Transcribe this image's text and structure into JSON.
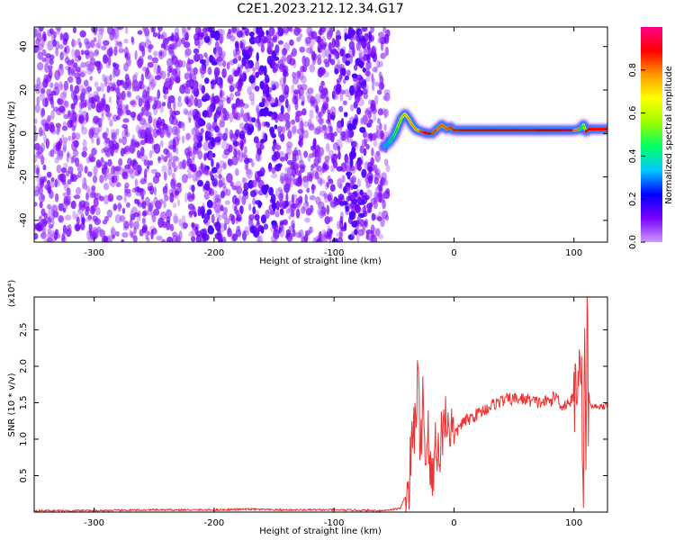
{
  "figure": {
    "title": "C2E1.2023.212.12.34.G17"
  },
  "chart_data": [
    {
      "type": "heatmap",
      "title": "C2E1.2023.212.12.34.G17",
      "xlabel": "Height of straight line (km)",
      "ylabel": "Frequency (Hz)",
      "xlim": [
        -350,
        128
      ],
      "ylim": [
        -50,
        49
      ],
      "x_ticks": [
        -300,
        -200,
        -100,
        0,
        100
      ],
      "y_ticks": [
        -40,
        -20,
        0,
        20,
        40
      ],
      "colorbar": {
        "label": "Normalized spectral amplitude",
        "range": [
          0.0,
          1.0
        ],
        "ticks": [
          0.0,
          0.2,
          0.4,
          0.6,
          0.8
        ],
        "colors": [
          "#cc99ff",
          "#7a00ff",
          "#0000ff",
          "#00c8ff",
          "#00ff66",
          "#99ff00",
          "#ffff00",
          "#ff9900",
          "#ff0000",
          "#ff0088"
        ]
      },
      "noise_region": {
        "x_range": [
          -350,
          -55
        ],
        "freq_range": [
          -50,
          49
        ],
        "amplitude_range": [
          0.0,
          0.25
        ]
      },
      "noise_dense_bands": [
        {
          "x_center": -205,
          "freq_center": -20,
          "width": 15
        },
        {
          "x_center": -160,
          "freq_center": 12,
          "width": 25
        },
        {
          "x_center": -85,
          "freq_center": -5,
          "width": 20
        }
      ],
      "signal_trace": {
        "x": [
          -58,
          -54,
          -50,
          -47,
          -44,
          -41,
          -38,
          -35,
          -32,
          -28,
          -25,
          -22,
          -18,
          -14,
          -10,
          -6,
          -3,
          0,
          5,
          15,
          30,
          50,
          70,
          90,
          100,
          105,
          108,
          110,
          113,
          118,
          128
        ],
        "freq": [
          -6,
          -4,
          -1,
          3,
          7,
          9,
          7,
          4,
          2,
          1,
          0.5,
          0,
          0,
          2,
          4,
          2,
          3,
          1.5,
          1.5,
          1.5,
          1.5,
          1.5,
          1.5,
          1.5,
          1.5,
          2,
          4,
          1,
          2,
          2,
          2
        ],
        "amplitude": [
          0.3,
          0.35,
          0.45,
          0.5,
          0.6,
          0.65,
          0.7,
          0.72,
          0.75,
          0.7,
          0.95,
          0.9,
          0.85,
          0.8,
          0.78,
          0.8,
          0.82,
          0.85,
          0.87,
          0.88,
          0.88,
          0.88,
          0.88,
          0.9,
          0.95,
          0.6,
          0.3,
          0.85,
          0.9,
          0.88,
          0.88
        ]
      }
    },
    {
      "type": "line",
      "xlabel": "Height of straight line (km)",
      "ylabel": "SNR (10 * v/v)",
      "multiplier": "(x10⁴)",
      "xlim": [
        -350,
        128
      ],
      "ylim": [
        0,
        2.95
      ],
      "x_ticks": [
        -300,
        -200,
        -100,
        0,
        100
      ],
      "y_ticks": [
        0.5,
        1.0,
        1.5,
        2.0,
        2.5
      ],
      "series": [
        {
          "color": "#ee3333",
          "x": [
            -350,
            -300,
            -250,
            -200,
            -170,
            -150,
            -100,
            -60,
            -45,
            -38,
            -35,
            -32,
            -30,
            -28,
            -26,
            -24,
            -22,
            -20,
            -18,
            -15,
            -12,
            -10,
            -5,
            0,
            5,
            10,
            15,
            20,
            25,
            30,
            35,
            40,
            45,
            50,
            60,
            70,
            80,
            85,
            90,
            95,
            100,
            103,
            105,
            107,
            108,
            109,
            110,
            111,
            112,
            115,
            120,
            128
          ],
          "y": [
            0.02,
            0.02,
            0.03,
            0.03,
            0.04,
            0.03,
            0.03,
            0.02,
            0.05,
            0.3,
            0.9,
            1.3,
            1.9,
            0.6,
            1.8,
            0.7,
            1.2,
            0.5,
            0.4,
            1.1,
            0.6,
            1.2,
            1.3,
            1.0,
            1.2,
            1.25,
            1.3,
            1.35,
            1.4,
            1.45,
            1.5,
            1.52,
            1.55,
            1.55,
            1.55,
            1.5,
            1.52,
            1.6,
            1.45,
            1.5,
            1.55,
            1.9,
            2.4,
            1.3,
            0.4,
            2.8,
            0.25,
            2.9,
            1.5,
            1.45,
            1.45,
            1.45
          ]
        }
      ]
    }
  ]
}
